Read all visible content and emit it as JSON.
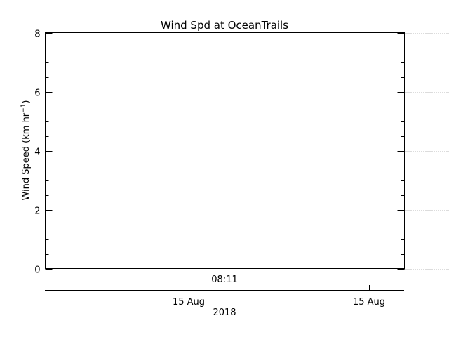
{
  "chart_data": {
    "type": "line",
    "title": "Wind Spd at OceanTrails",
    "ylabel": {
      "text": "Wind Speed (km hr",
      "superscript": "−1",
      "close": ")"
    },
    "ylim": [
      0,
      8
    ],
    "yticks": [
      0,
      2,
      4,
      6,
      8
    ],
    "y_minor_step": 0.5,
    "grid": "horizontal dotted at major y ticks",
    "series": [],
    "x_time_label": "08:11",
    "x_date_ticks": [
      "15 Aug",
      "15 Aug"
    ],
    "x_year_label": "2018"
  },
  "colors": {
    "axes": "#000000",
    "grid": "#b8b8b8",
    "background": "#ffffff"
  }
}
